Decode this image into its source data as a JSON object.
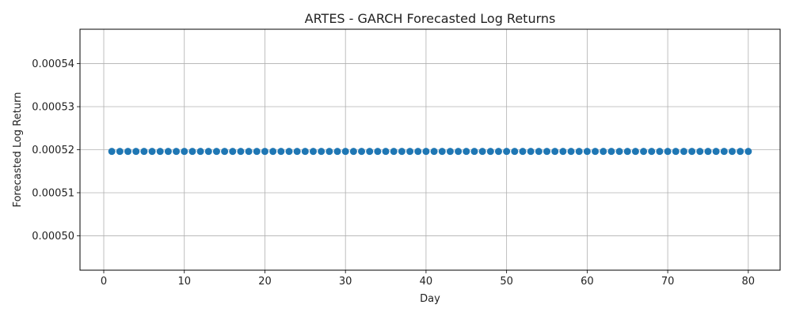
{
  "chart_data": {
    "type": "scatter",
    "title": "ARTES - GARCH Forecasted Log Returns",
    "xlabel": "Day",
    "ylabel": "Forecasted Log Return",
    "xlim": [
      -2.95,
      83.95
    ],
    "ylim": [
      0.000492,
      0.000548
    ],
    "xticks": [
      0,
      10,
      20,
      30,
      40,
      50,
      60,
      70,
      80
    ],
    "xtick_labels": [
      "0",
      "10",
      "20",
      "30",
      "40",
      "50",
      "60",
      "70",
      "80"
    ],
    "yticks": [
      0.0005,
      0.00051,
      0.00052,
      0.00053,
      0.00054
    ],
    "ytick_labels": [
      "0.00050",
      "0.00051",
      "0.00052",
      "0.00053",
      "0.00054"
    ],
    "grid": true,
    "marker_color": "#1f77b4",
    "series": [
      {
        "x": [
          1,
          2,
          3,
          4,
          5,
          6,
          7,
          8,
          9,
          10,
          11,
          12,
          13,
          14,
          15,
          16,
          17,
          18,
          19,
          20,
          21,
          22,
          23,
          24,
          25,
          26,
          27,
          28,
          29,
          30,
          31,
          32,
          33,
          34,
          35,
          36,
          37,
          38,
          39,
          40,
          41,
          42,
          43,
          44,
          45,
          46,
          47,
          48,
          49,
          50,
          51,
          52,
          53,
          54,
          55,
          56,
          57,
          58,
          59,
          60,
          61,
          62,
          63,
          64,
          65,
          66,
          67,
          68,
          69,
          70,
          71,
          72,
          73,
          74,
          75,
          76,
          77,
          78,
          79,
          80
        ],
        "y": [
          0.0005196,
          0.0005196,
          0.0005196,
          0.0005196,
          0.0005196,
          0.0005196,
          0.0005196,
          0.0005196,
          0.0005196,
          0.0005196,
          0.0005196,
          0.0005196,
          0.0005196,
          0.0005196,
          0.0005196,
          0.0005196,
          0.0005196,
          0.0005196,
          0.0005196,
          0.0005196,
          0.0005196,
          0.0005196,
          0.0005196,
          0.0005196,
          0.0005196,
          0.0005196,
          0.0005196,
          0.0005196,
          0.0005196,
          0.0005196,
          0.0005196,
          0.0005196,
          0.0005196,
          0.0005196,
          0.0005196,
          0.0005196,
          0.0005196,
          0.0005196,
          0.0005196,
          0.0005196,
          0.0005196,
          0.0005196,
          0.0005196,
          0.0005196,
          0.0005196,
          0.0005196,
          0.0005196,
          0.0005196,
          0.0005196,
          0.0005196,
          0.0005196,
          0.0005196,
          0.0005196,
          0.0005196,
          0.0005196,
          0.0005196,
          0.0005196,
          0.0005196,
          0.0005196,
          0.0005196,
          0.0005196,
          0.0005196,
          0.0005196,
          0.0005196,
          0.0005196,
          0.0005196,
          0.0005196,
          0.0005196,
          0.0005196,
          0.0005196,
          0.0005196,
          0.0005196,
          0.0005196,
          0.0005196,
          0.0005196,
          0.0005196,
          0.0005196,
          0.0005196,
          0.0005196,
          0.0005196
        ]
      }
    ]
  }
}
